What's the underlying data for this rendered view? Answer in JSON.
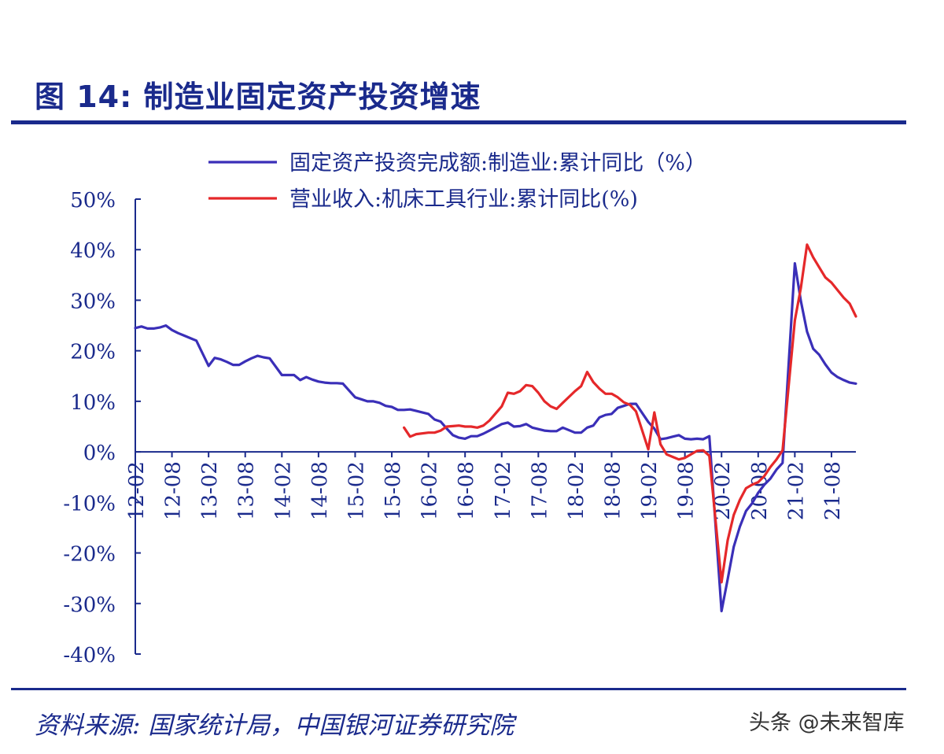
{
  "figure_title": "图 14:  制造业固定资产投资增速",
  "source": "资料来源:  国家统计局，中国银河证券研究院",
  "watermark": "头条 @未来智库",
  "colors": {
    "axis": "#1a2a8c",
    "series_blue": "#3a2fb8",
    "series_red": "#e5282a",
    "text": "#1a2a8c"
  },
  "chart_data": {
    "type": "line",
    "title": "",
    "xlabel": "",
    "ylabel": "",
    "ylim": [
      -40,
      50
    ],
    "yticks": [
      {
        "value": 50,
        "label": "50%"
      },
      {
        "value": 40,
        "label": "40%"
      },
      {
        "value": 30,
        "label": "30%"
      },
      {
        "value": 20,
        "label": "20%"
      },
      {
        "value": 10,
        "label": "10%"
      },
      {
        "value": 0,
        "label": "0%"
      },
      {
        "value": -10,
        "label": "-10%"
      },
      {
        "value": -20,
        "label": "-20%"
      },
      {
        "value": -30,
        "label": "-30%"
      },
      {
        "value": -40,
        "label": "-40%"
      }
    ],
    "xrange": [
      "2012-02",
      "2021-12"
    ],
    "xticks": [
      "12-02",
      "12-08",
      "13-02",
      "13-08",
      "14-02",
      "14-08",
      "15-02",
      "15-08",
      "16-02",
      "16-08",
      "17-02",
      "17-08",
      "18-02",
      "18-08",
      "19-02",
      "19-08",
      "20-02",
      "20-08",
      "21-02",
      "21-08"
    ],
    "legend_position": "top",
    "grid": false,
    "series": [
      {
        "name": "固定资产投资完成额:制造业:累计同比（%）",
        "color": "#3a2fb8",
        "points": [
          [
            "2012-02",
            24.5
          ],
          [
            "2012-03",
            24.8
          ],
          [
            "2012-04",
            24.4
          ],
          [
            "2012-05",
            24.4
          ],
          [
            "2012-06",
            24.6
          ],
          [
            "2012-07",
            25.0
          ],
          [
            "2012-08",
            24.1
          ],
          [
            "2012-09",
            23.5
          ],
          [
            "2012-10",
            23.0
          ],
          [
            "2012-11",
            22.5
          ],
          [
            "2012-12",
            22.0
          ],
          [
            "2013-02",
            17.0
          ],
          [
            "2013-03",
            18.6
          ],
          [
            "2013-04",
            18.3
          ],
          [
            "2013-05",
            17.8
          ],
          [
            "2013-06",
            17.2
          ],
          [
            "2013-07",
            17.2
          ],
          [
            "2013-08",
            17.9
          ],
          [
            "2013-09",
            18.5
          ],
          [
            "2013-10",
            19.0
          ],
          [
            "2013-11",
            18.7
          ],
          [
            "2013-12",
            18.5
          ],
          [
            "2014-02",
            15.2
          ],
          [
            "2014-03",
            15.2
          ],
          [
            "2014-04",
            15.2
          ],
          [
            "2014-05",
            14.2
          ],
          [
            "2014-06",
            14.8
          ],
          [
            "2014-07",
            14.3
          ],
          [
            "2014-08",
            13.9
          ],
          [
            "2014-09",
            13.7
          ],
          [
            "2014-10",
            13.6
          ],
          [
            "2014-11",
            13.6
          ],
          [
            "2014-12",
            13.5
          ],
          [
            "2015-02",
            10.8
          ],
          [
            "2015-03",
            10.4
          ],
          [
            "2015-04",
            10.0
          ],
          [
            "2015-05",
            10.0
          ],
          [
            "2015-06",
            9.7
          ],
          [
            "2015-07",
            9.1
          ],
          [
            "2015-08",
            8.9
          ],
          [
            "2015-09",
            8.3
          ],
          [
            "2015-10",
            8.3
          ],
          [
            "2015-11",
            8.4
          ],
          [
            "2015-12",
            8.1
          ],
          [
            "2016-02",
            7.5
          ],
          [
            "2016-03",
            6.4
          ],
          [
            "2016-04",
            6.0
          ],
          [
            "2016-05",
            4.6
          ],
          [
            "2016-06",
            3.3
          ],
          [
            "2016-07",
            2.8
          ],
          [
            "2016-08",
            2.6
          ],
          [
            "2016-09",
            3.1
          ],
          [
            "2016-10",
            3.1
          ],
          [
            "2016-11",
            3.6
          ],
          [
            "2016-12",
            4.2
          ],
          [
            "2017-02",
            5.5
          ],
          [
            "2017-03",
            5.8
          ],
          [
            "2017-04",
            5.0
          ],
          [
            "2017-05",
            5.1
          ],
          [
            "2017-06",
            5.5
          ],
          [
            "2017-07",
            4.8
          ],
          [
            "2017-08",
            4.5
          ],
          [
            "2017-09",
            4.2
          ],
          [
            "2017-10",
            4.1
          ],
          [
            "2017-11",
            4.1
          ],
          [
            "2017-12",
            4.8
          ],
          [
            "2018-02",
            3.8
          ],
          [
            "2018-03",
            3.8
          ],
          [
            "2018-04",
            4.8
          ],
          [
            "2018-05",
            5.2
          ],
          [
            "2018-06",
            6.8
          ],
          [
            "2018-07",
            7.3
          ],
          [
            "2018-08",
            7.5
          ],
          [
            "2018-09",
            8.7
          ],
          [
            "2018-10",
            9.1
          ],
          [
            "2018-11",
            9.5
          ],
          [
            "2018-12",
            9.5
          ],
          [
            "2019-02",
            5.9
          ],
          [
            "2019-03",
            4.6
          ],
          [
            "2019-04",
            2.5
          ],
          [
            "2019-05",
            2.7
          ],
          [
            "2019-06",
            3.0
          ],
          [
            "2019-07",
            3.3
          ],
          [
            "2019-08",
            2.6
          ],
          [
            "2019-09",
            2.5
          ],
          [
            "2019-10",
            2.6
          ],
          [
            "2019-11",
            2.5
          ],
          [
            "2019-12",
            3.1
          ],
          [
            "2020-02",
            -31.5
          ],
          [
            "2020-03",
            -25.2
          ],
          [
            "2020-04",
            -18.8
          ],
          [
            "2020-05",
            -14.8
          ],
          [
            "2020-06",
            -11.7
          ],
          [
            "2020-07",
            -10.2
          ],
          [
            "2020-08",
            -8.1
          ],
          [
            "2020-09",
            -6.5
          ],
          [
            "2020-10",
            -5.3
          ],
          [
            "2020-11",
            -3.5
          ],
          [
            "2020-12",
            -2.2
          ],
          [
            "2021-02",
            37.3
          ],
          [
            "2021-03",
            29.8
          ],
          [
            "2021-04",
            23.8
          ],
          [
            "2021-05",
            20.4
          ],
          [
            "2021-06",
            19.2
          ],
          [
            "2021-07",
            17.3
          ],
          [
            "2021-08",
            15.7
          ],
          [
            "2021-09",
            14.8
          ],
          [
            "2021-10",
            14.2
          ],
          [
            "2021-11",
            13.7
          ],
          [
            "2021-12",
            13.5
          ]
        ]
      },
      {
        "name": "营业收入:机床工具行业:累计同比(%)",
        "color": "#e5282a",
        "points": [
          [
            "2015-10",
            4.8
          ],
          [
            "2015-11",
            3.0
          ],
          [
            "2015-12",
            3.5
          ],
          [
            "2016-02",
            3.8
          ],
          [
            "2016-03",
            3.8
          ],
          [
            "2016-04",
            4.2
          ],
          [
            "2016-05",
            5.0
          ],
          [
            "2016-06",
            5.1
          ],
          [
            "2016-07",
            5.2
          ],
          [
            "2016-08",
            5.0
          ],
          [
            "2016-09",
            5.0
          ],
          [
            "2016-10",
            4.8
          ],
          [
            "2016-11",
            5.2
          ],
          [
            "2016-12",
            6.2
          ],
          [
            "2017-02",
            9.0
          ],
          [
            "2017-03",
            11.7
          ],
          [
            "2017-04",
            11.5
          ],
          [
            "2017-05",
            12.0
          ],
          [
            "2017-06",
            13.2
          ],
          [
            "2017-07",
            13.0
          ],
          [
            "2017-08",
            11.7
          ],
          [
            "2017-09",
            10.0
          ],
          [
            "2017-10",
            9.0
          ],
          [
            "2017-11",
            8.5
          ],
          [
            "2017-12",
            9.7
          ],
          [
            "2018-02",
            12.0
          ],
          [
            "2018-03",
            13.0
          ],
          [
            "2018-04",
            15.8
          ],
          [
            "2018-05",
            13.8
          ],
          [
            "2018-06",
            12.5
          ],
          [
            "2018-07",
            11.5
          ],
          [
            "2018-08",
            11.5
          ],
          [
            "2018-09",
            10.8
          ],
          [
            "2018-10",
            9.8
          ],
          [
            "2018-11",
            9.3
          ],
          [
            "2018-12",
            8.0
          ],
          [
            "2019-02",
            0.5
          ],
          [
            "2019-03",
            7.8
          ],
          [
            "2019-04",
            1.5
          ],
          [
            "2019-05",
            -0.5
          ],
          [
            "2019-06",
            -1.0
          ],
          [
            "2019-07",
            -1.5
          ],
          [
            "2019-08",
            -1.2
          ],
          [
            "2019-09",
            -0.5
          ],
          [
            "2019-10",
            0.2
          ],
          [
            "2019-11",
            0.3
          ],
          [
            "2019-12",
            -0.8
          ],
          [
            "2020-02",
            -25.8
          ],
          [
            "2020-03",
            -17.5
          ],
          [
            "2020-04",
            -12.5
          ],
          [
            "2020-05",
            -9.5
          ],
          [
            "2020-06",
            -7.2
          ],
          [
            "2020-07",
            -6.5
          ],
          [
            "2020-08",
            -6.0
          ],
          [
            "2020-09",
            -4.8
          ],
          [
            "2020-10",
            -3.0
          ],
          [
            "2020-11",
            -1.5
          ],
          [
            "2020-12",
            0.3
          ],
          [
            "2021-02",
            26.0
          ],
          [
            "2021-03",
            32.5
          ],
          [
            "2021-04",
            41.0
          ],
          [
            "2021-05",
            38.5
          ],
          [
            "2021-06",
            36.5
          ],
          [
            "2021-07",
            34.5
          ],
          [
            "2021-08",
            33.5
          ],
          [
            "2021-09",
            32.0
          ],
          [
            "2021-10",
            30.5
          ],
          [
            "2021-11",
            29.3
          ],
          [
            "2021-12",
            26.8
          ]
        ]
      }
    ]
  }
}
